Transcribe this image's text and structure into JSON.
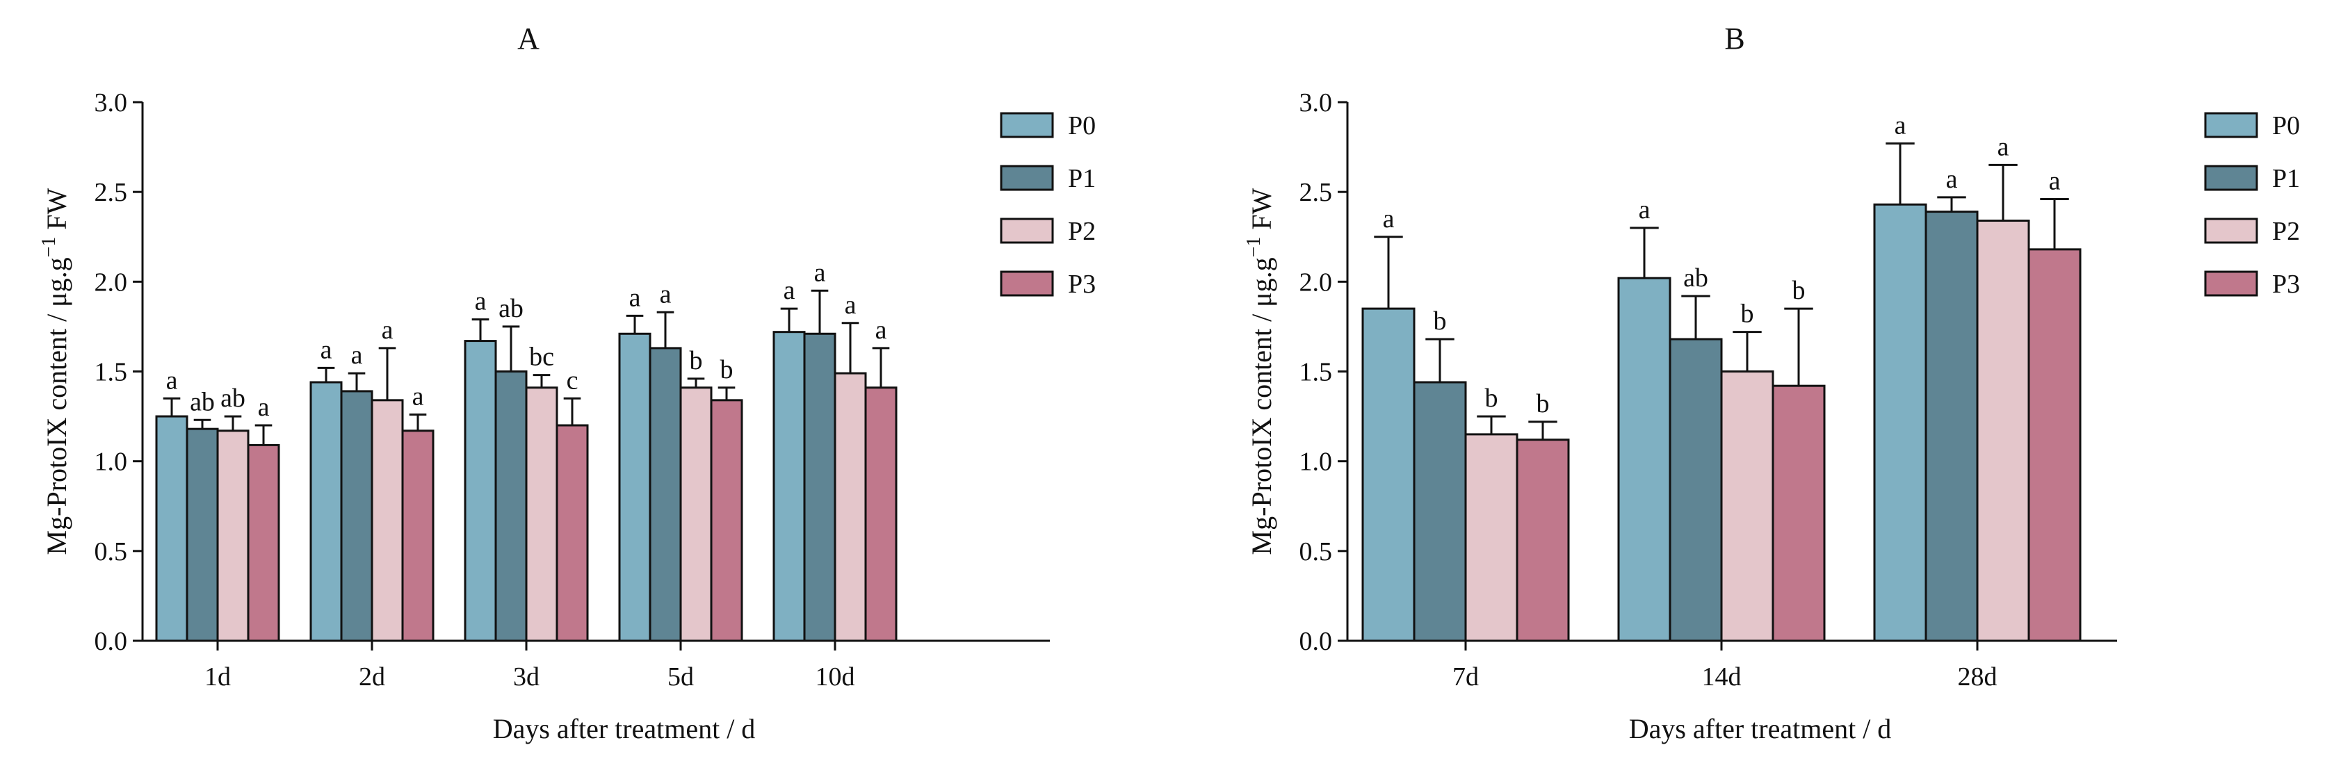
{
  "chart_data": [
    {
      "type": "bar",
      "title": "A",
      "xlabel": "Days after treatment / d",
      "ylabel_main": "Mg-ProtoIX content / μg.g",
      "ylabel_sup": "−1",
      "ylabel_tail": " FW",
      "ylim": [
        0,
        3.0
      ],
      "yticks": [
        "0.0",
        "0.5",
        "1.0",
        "1.5",
        "2.0",
        "2.5",
        "3.0"
      ],
      "ytick_values": [
        0,
        0.5,
        1.0,
        1.5,
        2.0,
        2.5,
        3.0
      ],
      "categories": [
        "1d",
        "2d",
        "3d",
        "5d",
        "10d"
      ],
      "series": [
        {
          "name": "P0",
          "color": "#7fb0c2",
          "values": [
            1.25,
            1.44,
            1.67,
            1.71,
            1.72
          ],
          "errors": [
            0.1,
            0.08,
            0.12,
            0.1,
            0.13
          ],
          "labels": [
            "a",
            "a",
            "a",
            "a",
            "a"
          ]
        },
        {
          "name": "P1",
          "color": "#5f8594",
          "values": [
            1.18,
            1.39,
            1.5,
            1.63,
            1.71
          ],
          "errors": [
            0.05,
            0.1,
            0.25,
            0.2,
            0.24
          ],
          "labels": [
            "ab",
            "a",
            "ab",
            "a",
            "a"
          ]
        },
        {
          "name": "P2",
          "color": "#e4c6cb",
          "values": [
            1.17,
            1.34,
            1.41,
            1.41,
            1.49
          ],
          "errors": [
            0.08,
            0.29,
            0.07,
            0.05,
            0.28
          ],
          "labels": [
            "ab",
            "a",
            "bc",
            "b",
            "a"
          ]
        },
        {
          "name": "P3",
          "color": "#c0788c",
          "values": [
            1.09,
            1.17,
            1.2,
            1.34,
            1.41
          ],
          "errors": [
            0.11,
            0.09,
            0.15,
            0.07,
            0.22
          ],
          "labels": [
            "a",
            "a",
            "c",
            "b",
            "a"
          ]
        }
      ],
      "legend": [
        "P0",
        "P1",
        "P2",
        "P3"
      ],
      "legend_position": "top-right, outside plot"
    },
    {
      "type": "bar",
      "title": "B",
      "xlabel": "Days after treatment / d",
      "ylabel_main": "Mg-ProtoIX content / μg.g",
      "ylabel_sup": "−1",
      "ylabel_tail": " FW",
      "ylim": [
        0,
        3.0
      ],
      "yticks": [
        "0.0",
        "0.5",
        "1.0",
        "1.5",
        "2.0",
        "2.5",
        "3.0"
      ],
      "ytick_values": [
        0,
        0.5,
        1.0,
        1.5,
        2.0,
        2.5,
        3.0
      ],
      "categories": [
        "7d",
        "14d",
        "28d"
      ],
      "series": [
        {
          "name": "P0",
          "color": "#7fb0c2",
          "values": [
            1.85,
            2.02,
            2.43
          ],
          "errors": [
            0.4,
            0.28,
            0.34
          ],
          "labels": [
            "a",
            "a",
            "a"
          ]
        },
        {
          "name": "P1",
          "color": "#5f8594",
          "values": [
            1.44,
            1.68,
            2.39
          ],
          "errors": [
            0.24,
            0.24,
            0.08
          ],
          "labels": [
            "b",
            "ab",
            "a"
          ]
        },
        {
          "name": "P2",
          "color": "#e4c6cb",
          "values": [
            1.15,
            1.5,
            2.34
          ],
          "errors": [
            0.1,
            0.22,
            0.31
          ],
          "labels": [
            "b",
            "b",
            "a"
          ]
        },
        {
          "name": "P3",
          "color": "#c0788c",
          "values": [
            1.12,
            1.42,
            2.18
          ],
          "errors": [
            0.1,
            0.43,
            0.28
          ],
          "labels": [
            "b",
            "b",
            "a"
          ]
        }
      ],
      "legend": [
        "P0",
        "P1",
        "P2",
        "P3"
      ],
      "legend_position": "top-right, outside plot"
    }
  ]
}
